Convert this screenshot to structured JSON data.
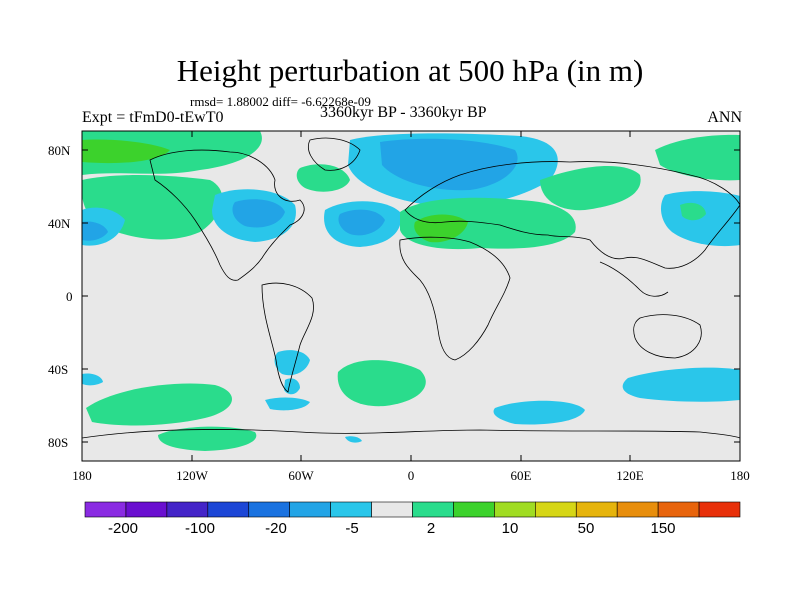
{
  "title": "Height perturbation at 500 hPa (in m)",
  "stats_text": "rmsd= 1.88002 diff= -6.62268e-09",
  "experiment_text": "Expt = tFmD0-tEwT0",
  "period_text": "3360kyr BP - 3360kyr BP",
  "season_text": "ANN",
  "lat_labels": [
    "80N",
    "40N",
    "0",
    "40S",
    "80S"
  ],
  "lon_labels": [
    "180",
    "120W",
    "60W",
    "0",
    "60E",
    "120E",
    "180"
  ],
  "colorbar": {
    "colors": [
      "#8a2be2",
      "#6a0fd0",
      "#4424c8",
      "#1c46d6",
      "#1a72e0",
      "#22a4e6",
      "#2ac6ea",
      "#e8e8e8",
      "#2adc8c",
      "#3cd22c",
      "#a0dc22",
      "#d6d616",
      "#e6b40c",
      "#e88e0c",
      "#e8640c",
      "#e8300a"
    ],
    "labels": [
      "-200",
      "-100",
      "-20",
      "-5",
      "2",
      "10",
      "50",
      "150"
    ]
  },
  "colors": {
    "background_field": "#e8e8e8",
    "light_positive": "#2adc8c",
    "positive": "#3cd22c",
    "light_negative": "#2ac6ea",
    "negative": "#22a4e6",
    "coastline": "#000000"
  }
}
